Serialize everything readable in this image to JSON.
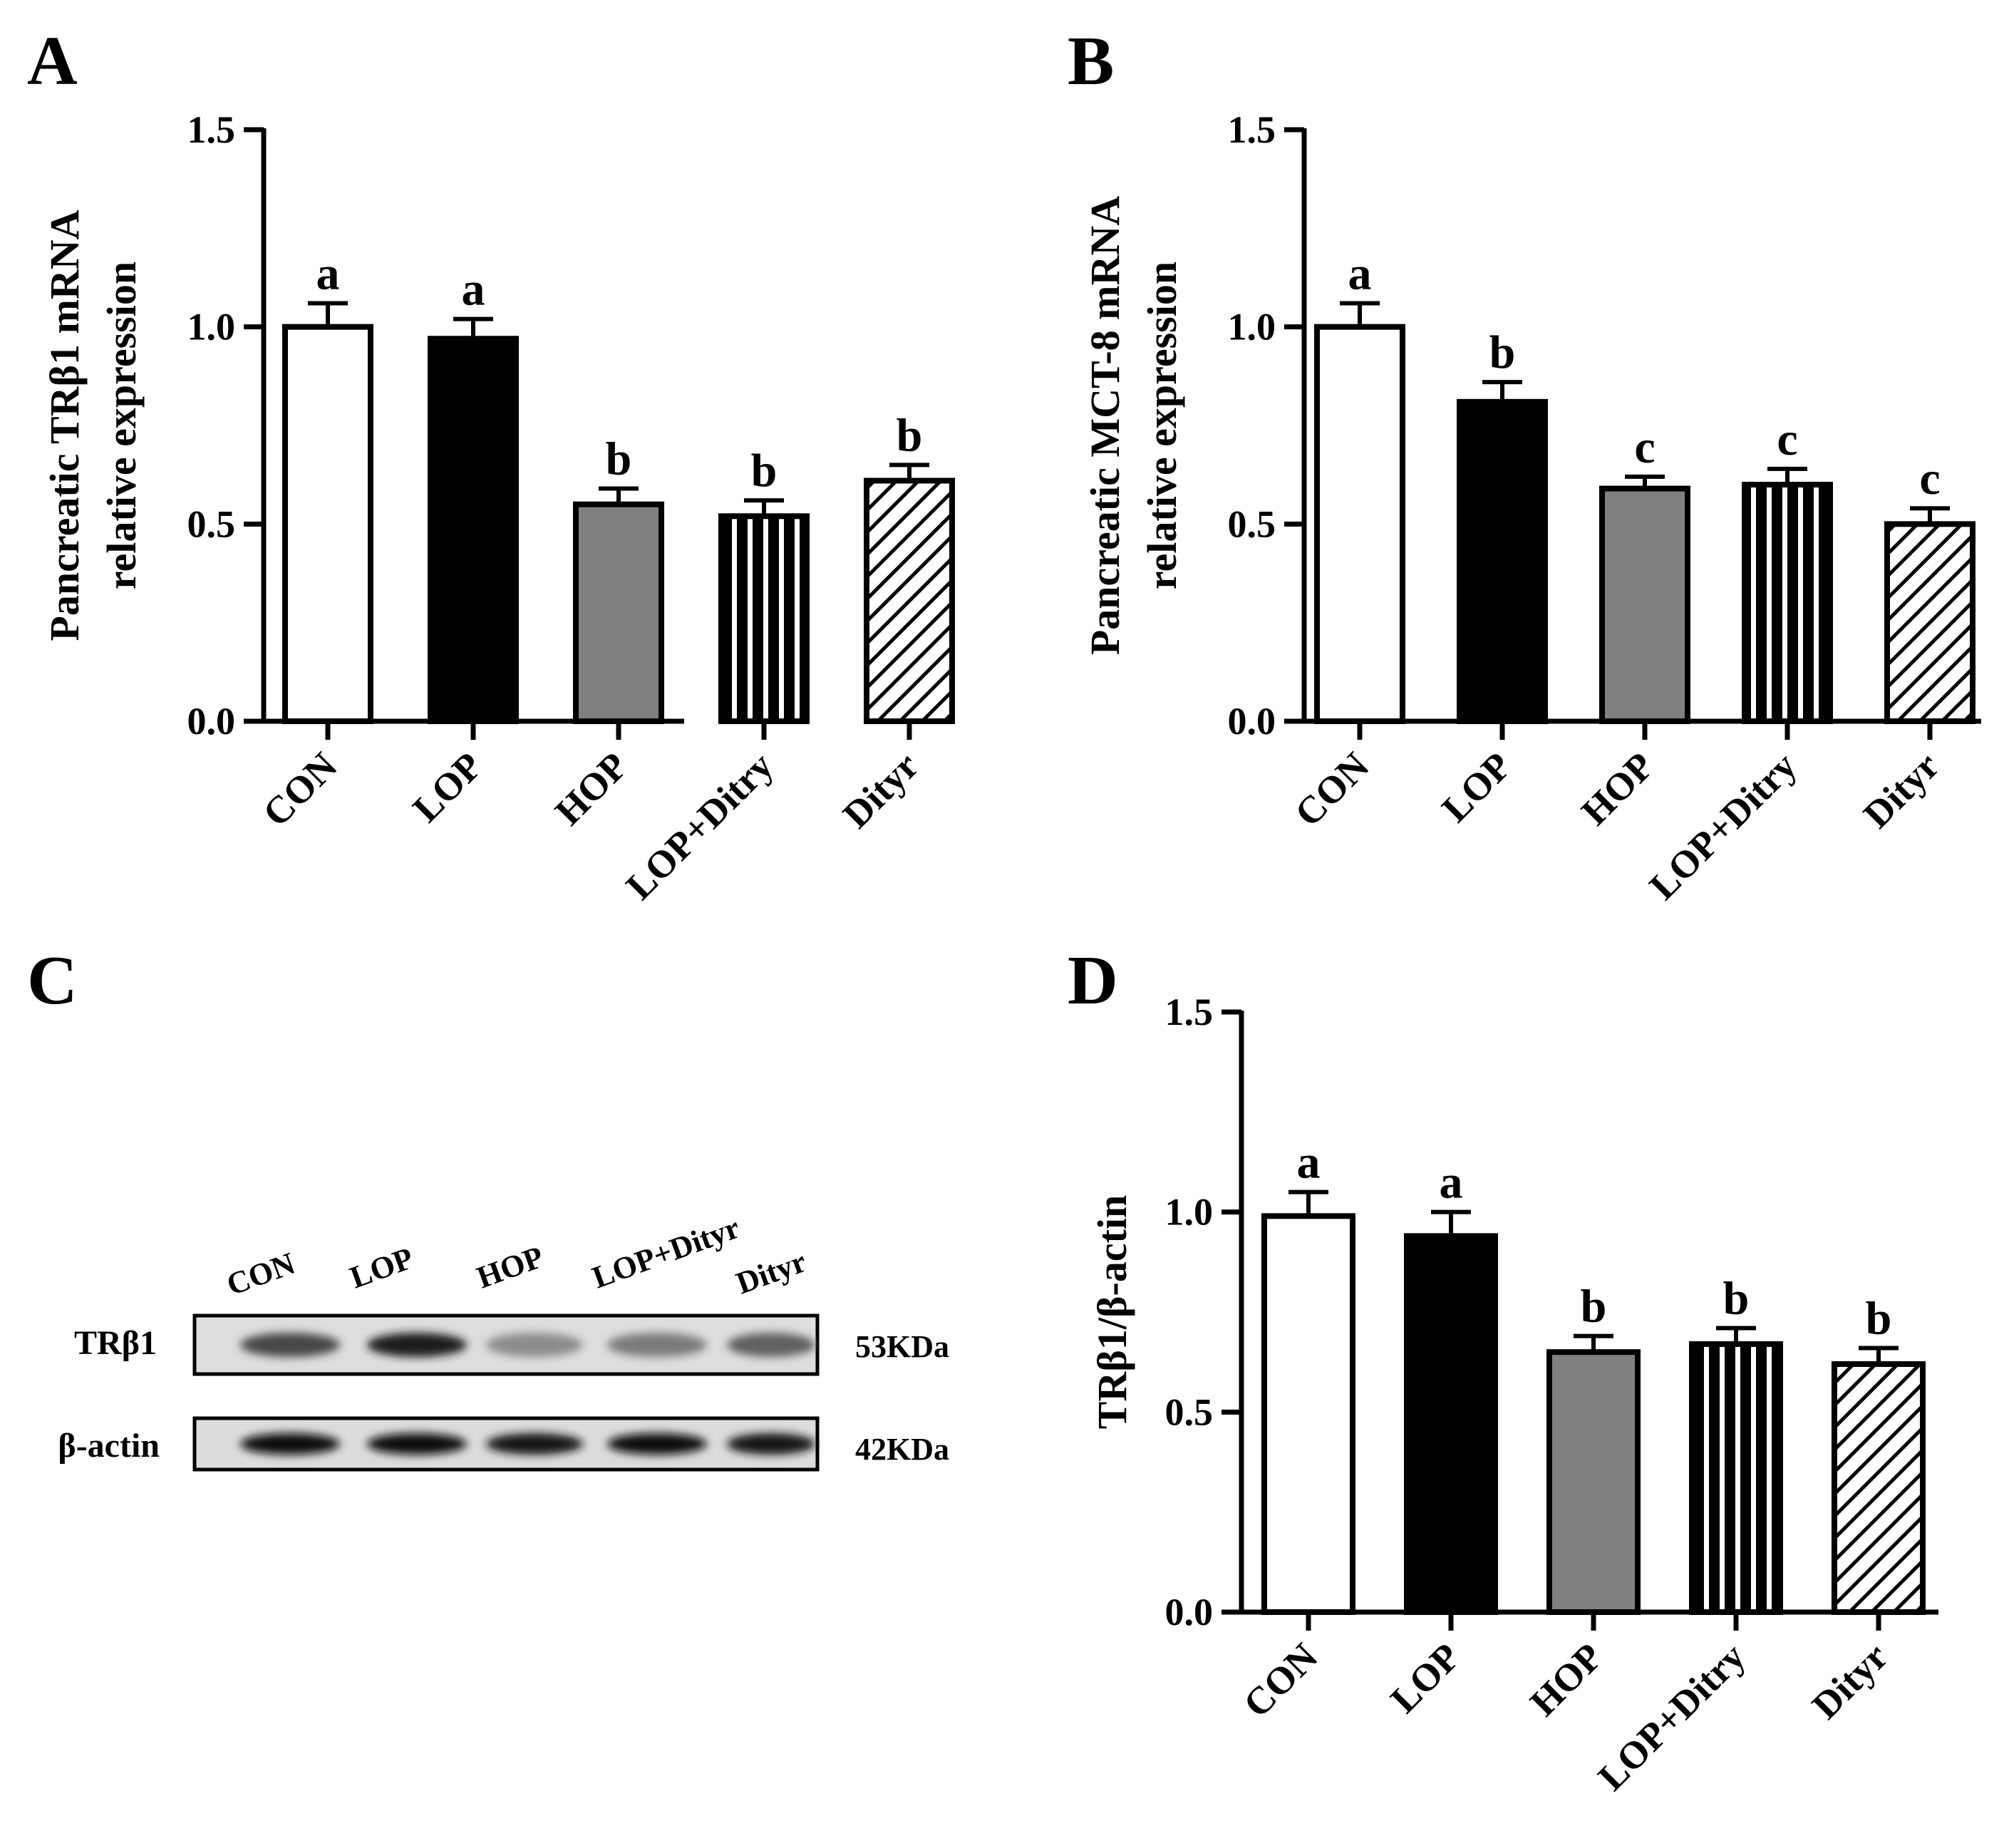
{
  "chart_data": [
    {
      "panel": "A",
      "type": "bar",
      "categories": [
        "CON",
        "LOP",
        "HOP",
        "LOP+Ditry",
        "Dityr"
      ],
      "values": [
        1.0,
        0.97,
        0.55,
        0.52,
        0.61
      ],
      "errors": [
        0.06,
        0.05,
        0.04,
        0.04,
        0.04
      ],
      "letters": [
        "a",
        "a",
        "b",
        "b",
        "b"
      ],
      "ylabel": [
        "Pancreatic TRβ1 mRNA",
        "relative expression"
      ],
      "ylim": [
        0,
        1.5
      ],
      "yticks": [
        "0.0",
        "0.5",
        "1.0",
        "1.5"
      ],
      "fills": [
        "white",
        "black",
        "gray",
        "vstripe",
        "diag"
      ]
    },
    {
      "panel": "B",
      "type": "bar",
      "categories": [
        "CON",
        "LOP",
        "HOP",
        "LOP+Ditry",
        "Dityr"
      ],
      "values": [
        1.0,
        0.81,
        0.59,
        0.6,
        0.5
      ],
      "errors": [
        0.06,
        0.05,
        0.03,
        0.04,
        0.04
      ],
      "letters": [
        "a",
        "b",
        "c",
        "c",
        "c"
      ],
      "ylabel": [
        "Pancreatic MCT-8 mRNA",
        "relative expression"
      ],
      "ylim": [
        0,
        1.5
      ],
      "yticks": [
        "0.0",
        "0.5",
        "1.0",
        "1.5"
      ],
      "fills": [
        "white",
        "black",
        "gray",
        "vstripe",
        "diag"
      ]
    },
    {
      "panel": "D",
      "type": "bar",
      "categories": [
        "CON",
        "LOP",
        "HOP",
        "LOP+Ditry",
        "Dityr"
      ],
      "values": [
        0.99,
        0.94,
        0.65,
        0.67,
        0.62
      ],
      "errors": [
        0.06,
        0.06,
        0.04,
        0.04,
        0.04
      ],
      "letters": [
        "a",
        "a",
        "b",
        "b",
        "b"
      ],
      "ylabel": [
        "TRβ1/β-actin"
      ],
      "ylim": [
        0,
        1.5
      ],
      "yticks": [
        "0.0",
        "0.5",
        "1.0",
        "1.5"
      ],
      "fills": [
        "white",
        "black",
        "gray",
        "vstripe",
        "diag"
      ]
    }
  ],
  "blot": {
    "panel": "C",
    "lanes": [
      "CON",
      "LOP",
      "HOP",
      "LOP+Dityr",
      "Dityr"
    ],
    "rows": [
      {
        "label": "TRβ1",
        "size": "53KDa",
        "intensity": [
          0.72,
          0.88,
          0.45,
          0.52,
          0.62
        ]
      },
      {
        "label": "β-actin",
        "size": "42KDa",
        "intensity": [
          0.95,
          0.95,
          0.93,
          0.95,
          0.93
        ]
      }
    ]
  }
}
